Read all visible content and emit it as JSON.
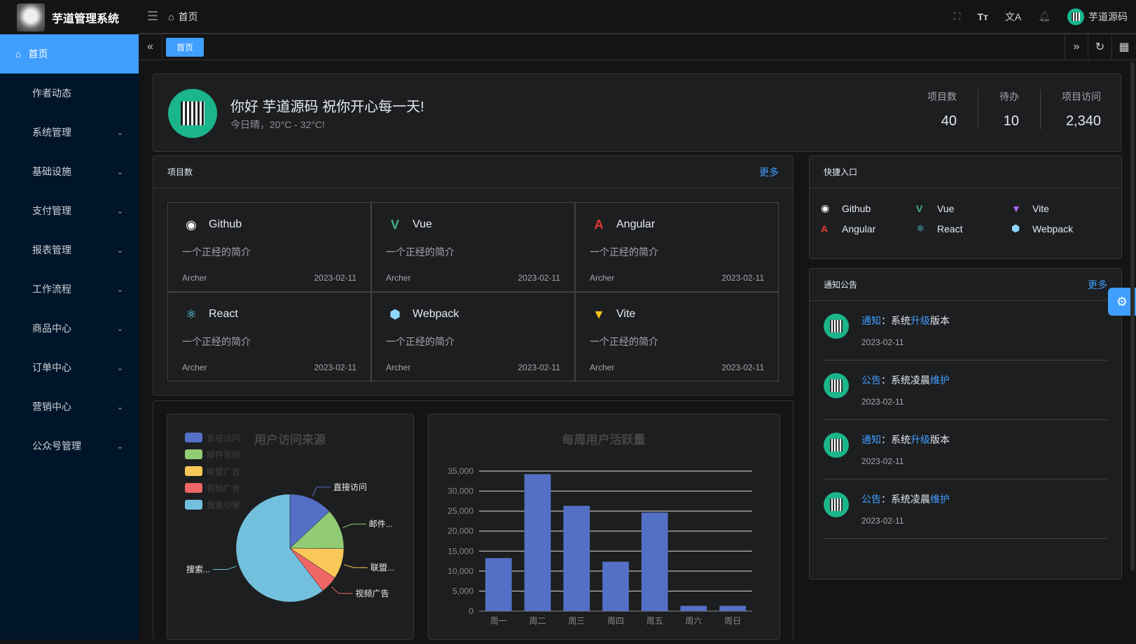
{
  "app": {
    "title": "芋道管理系统"
  },
  "sidebar": {
    "items": [
      {
        "label": "首页"
      },
      {
        "label": "作者动态"
      },
      {
        "label": "系统管理"
      },
      {
        "label": "基础设施"
      },
      {
        "label": "支付管理"
      },
      {
        "label": "报表管理"
      },
      {
        "label": "工作流程"
      },
      {
        "label": "商品中心"
      },
      {
        "label": "订单中心"
      },
      {
        "label": "营销中心"
      },
      {
        "label": "公众号管理"
      }
    ]
  },
  "header": {
    "breadcrumb": "首页",
    "user": "芋道源码"
  },
  "tabs": [
    {
      "label": "首页"
    }
  ],
  "welcome": {
    "greeting": "你好 芋道源码 祝你开心每一天!",
    "weather": "今日晴，20°C - 32°C!",
    "stats": [
      {
        "label": "项目数",
        "value": "40"
      },
      {
        "label": "待办",
        "value": "10"
      },
      {
        "label": "项目访问",
        "value": "2,340"
      }
    ]
  },
  "projects": {
    "title": "项目数",
    "more": "更多",
    "items": [
      {
        "name": "Github",
        "icon": "github-icon",
        "color": "#ffffff",
        "desc": "一个正经的简介",
        "author": "Archer",
        "date": "2023-02-11"
      },
      {
        "name": "Vue",
        "icon": "vue-icon",
        "color": "#3fb27f",
        "desc": "一个正经的简介",
        "author": "Archer",
        "date": "2023-02-11"
      },
      {
        "name": "Angular",
        "icon": "angular-icon",
        "color": "#e53935",
        "desc": "一个正经的简介",
        "author": "Archer",
        "date": "2023-02-11"
      },
      {
        "name": "React",
        "icon": "react-icon",
        "color": "#61dafb",
        "desc": "一个正经的简介",
        "author": "Archer",
        "date": "2023-02-11"
      },
      {
        "name": "Webpack",
        "icon": "webpack-icon",
        "color": "#8ed6fb",
        "desc": "一个正经的简介",
        "author": "Archer",
        "date": "2023-02-11"
      },
      {
        "name": "Vite",
        "icon": "vite-icon",
        "color": "#ffc517",
        "desc": "一个正经的简介",
        "author": "Archer",
        "date": "2023-02-11"
      }
    ]
  },
  "shortcuts": {
    "title": "快捷入口",
    "items": [
      {
        "name": "Github",
        "color": "#ffffff"
      },
      {
        "name": "Vue",
        "color": "#3fb27f"
      },
      {
        "name": "Vite",
        "color": "#a66cff"
      },
      {
        "name": "Angular",
        "color": "#e53935"
      },
      {
        "name": "React",
        "color": "#61dafb"
      },
      {
        "name": "Webpack",
        "color": "#8ed6fb"
      }
    ]
  },
  "notices": {
    "title": "通知公告",
    "more": "更多",
    "items": [
      {
        "type": "通知",
        "sep": "：",
        "pre": "系统",
        "kw": "升级",
        "post": "版本",
        "date": "2023-02-11"
      },
      {
        "type": "公告",
        "sep": "：",
        "pre": "系统凌晨",
        "kw": "维护",
        "post": "",
        "date": "2023-02-11"
      },
      {
        "type": "通知",
        "sep": "：",
        "pre": "系统",
        "kw": "升级",
        "post": "版本",
        "date": "2023-02-11"
      },
      {
        "type": "公告",
        "sep": "：",
        "pre": "系统凌晨",
        "kw": "维护",
        "post": "",
        "date": "2023-02-11"
      }
    ]
  },
  "chart_data": [
    {
      "type": "pie",
      "title": "用户访问来源",
      "legend": "top-left",
      "categories": [
        "直接访问",
        "邮件营销",
        "联盟广告",
        "视频广告",
        "搜索引擎"
      ],
      "labels": [
        "直接访问",
        "邮件...",
        "联盟...",
        "视频广告",
        "搜索..."
      ],
      "values": [
        335,
        310,
        234,
        135,
        1548
      ],
      "colors": [
        "#5470c6",
        "#91cc75",
        "#fac858",
        "#ee6666",
        "#73c0de"
      ]
    },
    {
      "type": "bar",
      "title": "每周用户活跃量",
      "categories": [
        "周一",
        "周二",
        "周三",
        "周四",
        "周五",
        "周六",
        "周日"
      ],
      "values": [
        13253,
        34235,
        26321,
        12340,
        24643,
        1322,
        1324
      ],
      "ylim": [
        0,
        35000
      ],
      "yticks": [
        "0",
        "5,000",
        "10,000",
        "15,000",
        "20,000",
        "25,000",
        "30,000",
        "35,000"
      ],
      "grid": true,
      "color": "#5470c6"
    }
  ]
}
